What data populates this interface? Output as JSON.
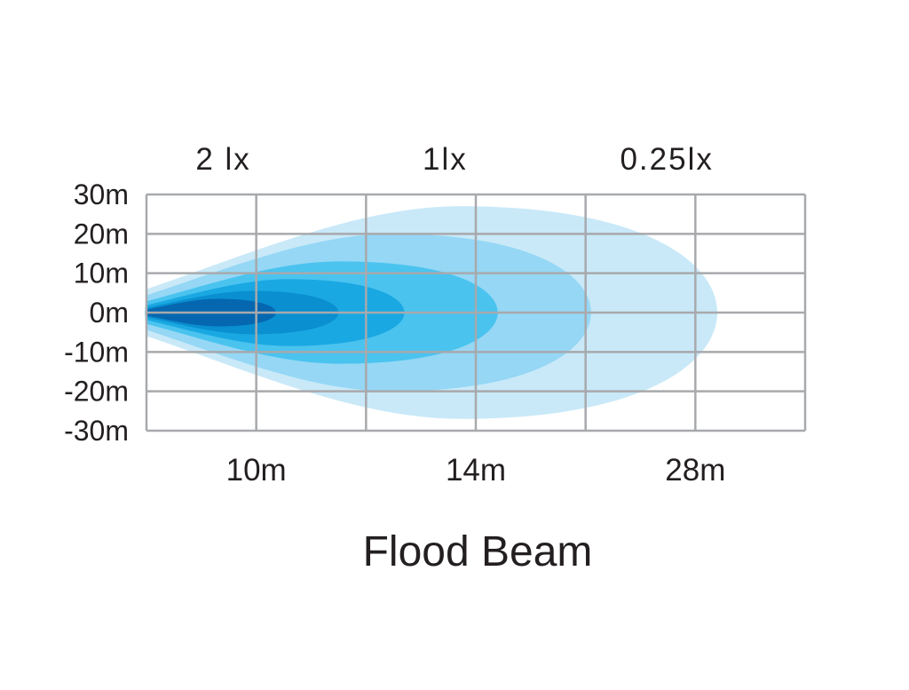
{
  "chart_data": {
    "type": "area",
    "title": "Flood Beam",
    "y_ticks": [
      "30m",
      "20m",
      "10m",
      "0m",
      "-10m",
      "-20m",
      "-30m"
    ],
    "y_values": [
      30,
      20,
      10,
      0,
      -10,
      -20,
      -30
    ],
    "ylim": [
      -30,
      30
    ],
    "x_labels": [
      "10m",
      "14m",
      "28m"
    ],
    "top_labels": [
      "2 lx",
      "1lx",
      "0.25lx"
    ],
    "grid": true,
    "grid_columns": 6,
    "zones": [
      {
        "reach_cols": 5.2,
        "halfwidth_m": 27,
        "color": "#c9e9f8"
      },
      {
        "reach_cols": 4.05,
        "halfwidth_m": 20,
        "color": "#95d7f5"
      },
      {
        "reach_cols": 3.2,
        "halfwidth_m": 13,
        "color": "#4ac3ef"
      },
      {
        "reach_cols": 2.35,
        "halfwidth_m": 8.5,
        "color": "#1aa8e2"
      },
      {
        "reach_cols": 1.75,
        "halfwidth_m": 5.5,
        "color": "#0a8fd0"
      },
      {
        "reach_cols": 1.18,
        "halfwidth_m": 3.5,
        "color": "#0467b0"
      }
    ],
    "grid_color": "#a8a9ac"
  }
}
